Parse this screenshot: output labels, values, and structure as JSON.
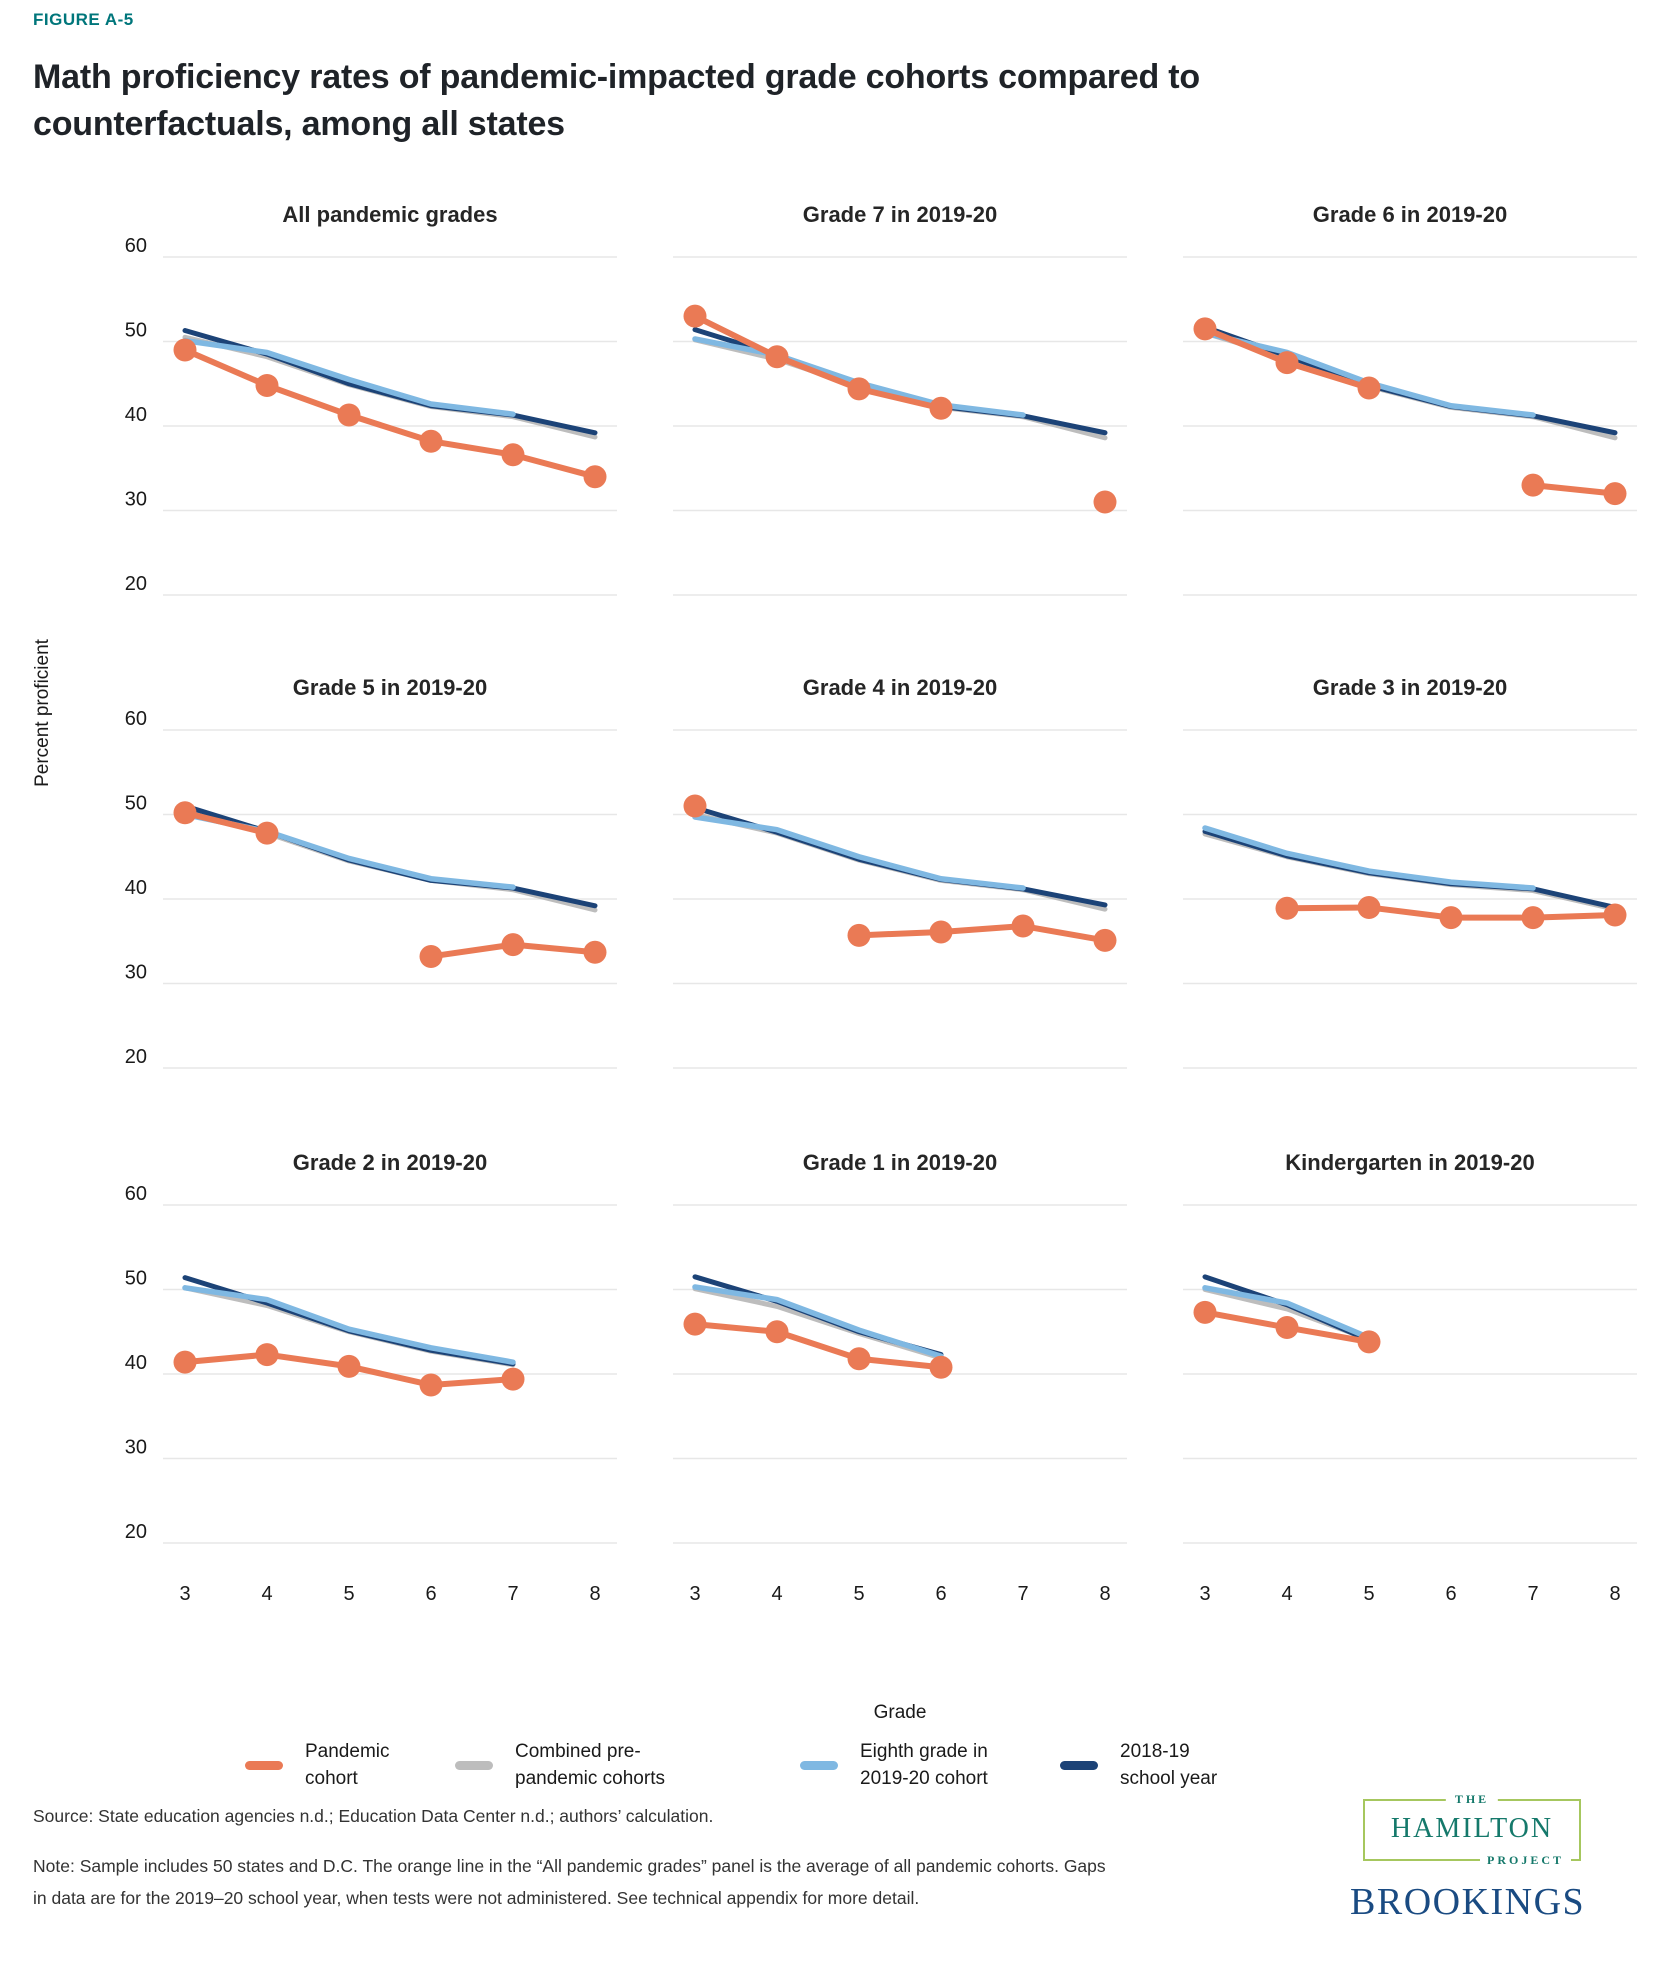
{
  "header": {
    "figure_label": "FIGURE A-5",
    "title": "Math proficiency rates of pandemic-impacted grade cohorts compared to counterfactuals, among all states"
  },
  "colors": {
    "pandemic": "#EA7A55",
    "prepandemic": "#BDBDBD",
    "eighth": "#7FB8E2",
    "sy1819": "#1C4377",
    "accent_teal": "#00767B",
    "brookings_blue": "#1A4B82",
    "hamilton_teal": "#15796B",
    "hamilton_green": "#A6C75E"
  },
  "axes": {
    "y_title": "Percent proficient",
    "x_title": "Grade",
    "y_ticks": [
      60,
      50,
      40,
      30,
      20
    ],
    "x_ticks": [
      3,
      4,
      5,
      6,
      7,
      8
    ],
    "ylim": [
      20,
      60
    ],
    "grid": true
  },
  "legend": {
    "position": "bottom",
    "items": [
      {
        "key": "pandemic",
        "label": "Pandemic\ncohort"
      },
      {
        "key": "prepandemic",
        "label": "Combined pre-\npandemic cohorts"
      },
      {
        "key": "eighth",
        "label": "Eighth grade in\n2019-20 cohort"
      },
      {
        "key": "sy1819",
        "label": "2018-19\nschool year"
      }
    ]
  },
  "chart_data": [
    {
      "type": "line",
      "title": "All pandemic grades",
      "x": [
        3,
        4,
        5,
        6,
        7,
        8
      ],
      "ylim": [
        20,
        60
      ],
      "series": [
        {
          "key": "pandemic",
          "name": "Pandemic cohort",
          "values": [
            49,
            44.8,
            41.3,
            38.2,
            36.6,
            34
          ]
        },
        {
          "key": "prepandemic",
          "name": "Combined pre-pandemic cohorts",
          "values": [
            50.5,
            48.2,
            44.9,
            42.3,
            41.1,
            38.7
          ]
        },
        {
          "key": "eighth",
          "name": "Eighth grade in 2019-20 cohort",
          "values": [
            50.1,
            48.7,
            45.5,
            42.6,
            41.4,
            null
          ]
        },
        {
          "key": "sy1819",
          "name": "2018-19 school year",
          "values": [
            51.3,
            48.5,
            45,
            42.4,
            41.3,
            39.2
          ]
        }
      ]
    },
    {
      "type": "line",
      "title": "Grade 7 in 2019-20",
      "x": [
        3,
        4,
        5,
        6,
        7,
        8
      ],
      "ylim": [
        20,
        60
      ],
      "series": [
        {
          "key": "pandemic",
          "name": "Pandemic cohort",
          "values": [
            53,
            48.2,
            44.4,
            42.1,
            null,
            31
          ]
        },
        {
          "key": "prepandemic",
          "name": "Combined pre-pandemic cohorts",
          "values": [
            50.2,
            47.9,
            44.7,
            42.2,
            41.1,
            38.6
          ]
        },
        {
          "key": "eighth",
          "name": "Eighth grade in 2019-20 cohort",
          "values": [
            50.3,
            48.4,
            45.1,
            42.5,
            41.3,
            null
          ]
        },
        {
          "key": "sy1819",
          "name": "2018-19 school year",
          "values": [
            51.4,
            48.4,
            44.9,
            42.3,
            41.2,
            39.2
          ]
        }
      ]
    },
    {
      "type": "line",
      "title": "Grade 6 in 2019-20",
      "x": [
        3,
        4,
        5,
        6,
        7,
        8
      ],
      "ylim": [
        20,
        60
      ],
      "series": [
        {
          "key": "pandemic",
          "name": "Pandemic cohort",
          "values": [
            51.5,
            47.5,
            44.5,
            null,
            33,
            32
          ]
        },
        {
          "key": "prepandemic",
          "name": "Combined pre-pandemic cohorts",
          "values": [
            51,
            48.1,
            44.7,
            42.2,
            41.1,
            38.6
          ]
        },
        {
          "key": "eighth",
          "name": "Eighth grade in 2019-20 cohort",
          "values": [
            51,
            48.7,
            45.1,
            42.4,
            41.3,
            null
          ]
        },
        {
          "key": "sy1819",
          "name": "2018-19 school year",
          "values": [
            51.7,
            48.3,
            44.8,
            42.3,
            41.2,
            39.2
          ]
        }
      ]
    },
    {
      "type": "line",
      "title": "Grade 5 in 2019-20",
      "x": [
        3,
        4,
        5,
        6,
        7,
        8
      ],
      "ylim": [
        20,
        60
      ],
      "series": [
        {
          "key": "pandemic",
          "name": "Pandemic cohort",
          "values": [
            50.2,
            47.8,
            null,
            33.2,
            34.6,
            33.7
          ]
        },
        {
          "key": "prepandemic",
          "name": "Combined pre-pandemic cohorts",
          "values": [
            50.4,
            47.8,
            44.5,
            42.2,
            41.1,
            38.7
          ]
        },
        {
          "key": "eighth",
          "name": "Eighth grade in 2019-20 cohort",
          "values": [
            50,
            48,
            44.8,
            42.4,
            41.4,
            null
          ]
        },
        {
          "key": "sy1819",
          "name": "2018-19 school year",
          "values": [
            51,
            48,
            44.6,
            42.2,
            41.3,
            39.2
          ]
        }
      ]
    },
    {
      "type": "line",
      "title": "Grade 4 in 2019-20",
      "x": [
        3,
        4,
        5,
        6,
        7,
        8
      ],
      "ylim": [
        20,
        60
      ],
      "series": [
        {
          "key": "pandemic",
          "name": "Pandemic cohort",
          "values": [
            51,
            null,
            35.7,
            36.1,
            36.8,
            35.1
          ]
        },
        {
          "key": "prepandemic",
          "name": "Combined pre-pandemic cohorts",
          "values": [
            50,
            47.8,
            44.6,
            42.2,
            41.1,
            38.8
          ]
        },
        {
          "key": "eighth",
          "name": "Eighth grade in 2019-20 cohort",
          "values": [
            49.7,
            48.2,
            45,
            42.4,
            41.3,
            null
          ]
        },
        {
          "key": "sy1819",
          "name": "2018-19 school year",
          "values": [
            50.8,
            47.9,
            44.7,
            42.3,
            41.2,
            39.3
          ]
        }
      ]
    },
    {
      "type": "line",
      "title": "Grade 3 in 2019-20",
      "x": [
        3,
        4,
        5,
        6,
        7,
        8
      ],
      "ylim": [
        20,
        60
      ],
      "series": [
        {
          "key": "pandemic",
          "name": "Pandemic cohort",
          "values": [
            null,
            38.9,
            39,
            37.8,
            37.8,
            38.1
          ]
        },
        {
          "key": "prepandemic",
          "name": "Combined pre-pandemic cohorts",
          "values": [
            47.7,
            45,
            43,
            41.7,
            41,
            38.8
          ]
        },
        {
          "key": "eighth",
          "name": "Eighth grade in 2019-20 cohort",
          "values": [
            48.4,
            45.4,
            43.3,
            42,
            41.3,
            null
          ]
        },
        {
          "key": "sy1819",
          "name": "2018-19 school year",
          "values": [
            48,
            45.1,
            43.1,
            41.8,
            41.2,
            39
          ]
        }
      ]
    },
    {
      "type": "line",
      "title": "Grade 2 in 2019-20",
      "x": [
        3,
        4,
        5,
        6,
        7,
        8
      ],
      "ylim": [
        20,
        60
      ],
      "series": [
        {
          "key": "pandemic",
          "name": "Pandemic cohort",
          "values": [
            41.4,
            42.3,
            40.9,
            38.7,
            39.4,
            null
          ]
        },
        {
          "key": "prepandemic",
          "name": "Combined pre-pandemic cohorts",
          "values": [
            50.2,
            48.1,
            45,
            42.7,
            41.1,
            null
          ]
        },
        {
          "key": "eighth",
          "name": "Eighth grade in 2019-20 cohort",
          "values": [
            50.2,
            48.8,
            45.3,
            43.1,
            41.4,
            null
          ]
        },
        {
          "key": "sy1819",
          "name": "2018-19 school year",
          "values": [
            51.4,
            48.4,
            45.1,
            42.8,
            41.2,
            null
          ]
        }
      ]
    },
    {
      "type": "line",
      "title": "Grade 1 in 2019-20",
      "x": [
        3,
        4,
        5,
        6,
        7,
        8
      ],
      "ylim": [
        20,
        60
      ],
      "series": [
        {
          "key": "pandemic",
          "name": "Pandemic cohort",
          "values": [
            45.9,
            45,
            41.8,
            40.8,
            null,
            null
          ]
        },
        {
          "key": "prepandemic",
          "name": "Combined pre-pandemic cohorts",
          "values": [
            50.1,
            48,
            44.8,
            41.9,
            null,
            null
          ]
        },
        {
          "key": "eighth",
          "name": "Eighth grade in 2019-20 cohort",
          "values": [
            50.3,
            48.8,
            45.2,
            42.1,
            null,
            null
          ]
        },
        {
          "key": "sy1819",
          "name": "2018-19 school year",
          "values": [
            51.5,
            48.6,
            45,
            42.3,
            null,
            null
          ]
        }
      ]
    },
    {
      "type": "line",
      "title": "Kindergarten in 2019-20",
      "x": [
        3,
        4,
        5,
        6,
        7,
        8
      ],
      "ylim": [
        20,
        60
      ],
      "series": [
        {
          "key": "pandemic",
          "name": "Pandemic cohort",
          "values": [
            47.3,
            45.5,
            43.8,
            null,
            null,
            null
          ]
        },
        {
          "key": "prepandemic",
          "name": "Combined pre-pandemic cohorts",
          "values": [
            50,
            47.7,
            44.1,
            null,
            null,
            null
          ]
        },
        {
          "key": "eighth",
          "name": "Eighth grade in 2019-20 cohort",
          "values": [
            50.2,
            48.4,
            44.3,
            null,
            null,
            null
          ]
        },
        {
          "key": "sy1819",
          "name": "2018-19 school year",
          "values": [
            51.5,
            48.2,
            44,
            null,
            null,
            null
          ]
        }
      ]
    }
  ],
  "footer": {
    "source": "Source: State education agencies n.d.; Education Data Center n.d.; authors’ calculation.",
    "note": "Note: Sample includes 50 states and D.C. The orange line in the “All pandemic grades” panel is the average of all  pandemic cohorts. Gaps in data are for the 2019–20 school year, when tests were not administered. See technical appendix for more detail."
  },
  "logos": {
    "hamilton": {
      "the": "THE",
      "name": "HAMILTON",
      "project": "PROJECT"
    },
    "brookings": "BROOKINGS"
  }
}
